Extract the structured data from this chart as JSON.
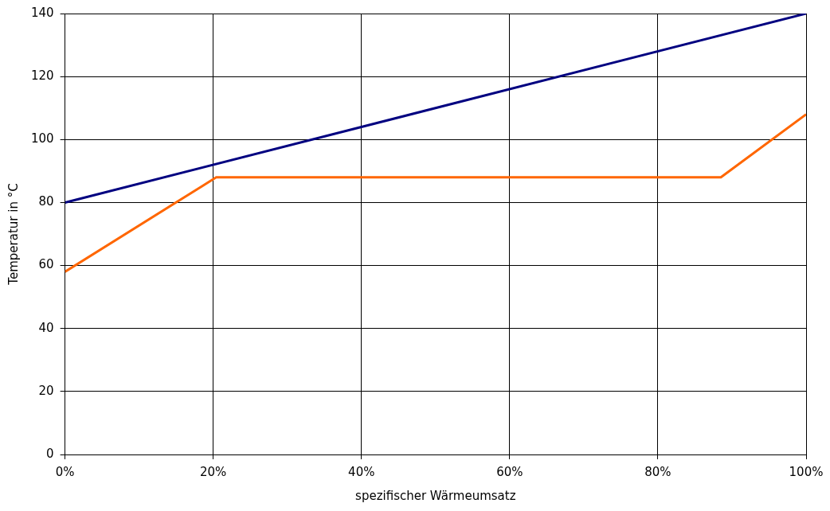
{
  "chart_data": {
    "type": "line",
    "xlabel": "spezifischer Wärmeumsatz",
    "ylabel": "Temperatur in °C",
    "xlim": [
      0,
      100
    ],
    "xticks": [
      {
        "value": 0,
        "label": "0%"
      },
      {
        "value": 20,
        "label": "20%"
      },
      {
        "value": 40,
        "label": "40%"
      },
      {
        "value": 60,
        "label": "60%"
      },
      {
        "value": 80,
        "label": "80%"
      },
      {
        "value": 100,
        "label": "100%"
      }
    ],
    "ylim": [
      0,
      140
    ],
    "yticks": [
      0,
      20,
      40,
      60,
      80,
      100,
      120,
      140
    ],
    "grid": true,
    "legend": false,
    "marker": "none",
    "line_style": "solid",
    "series": [
      {
        "color": "#000080",
        "x": [
          0,
          100
        ],
        "values": [
          80,
          140
        ]
      },
      {
        "color": "#ff6600",
        "x": [
          0,
          20.4,
          88.5,
          100
        ],
        "values": [
          58,
          88,
          88,
          108
        ]
      }
    ]
  }
}
